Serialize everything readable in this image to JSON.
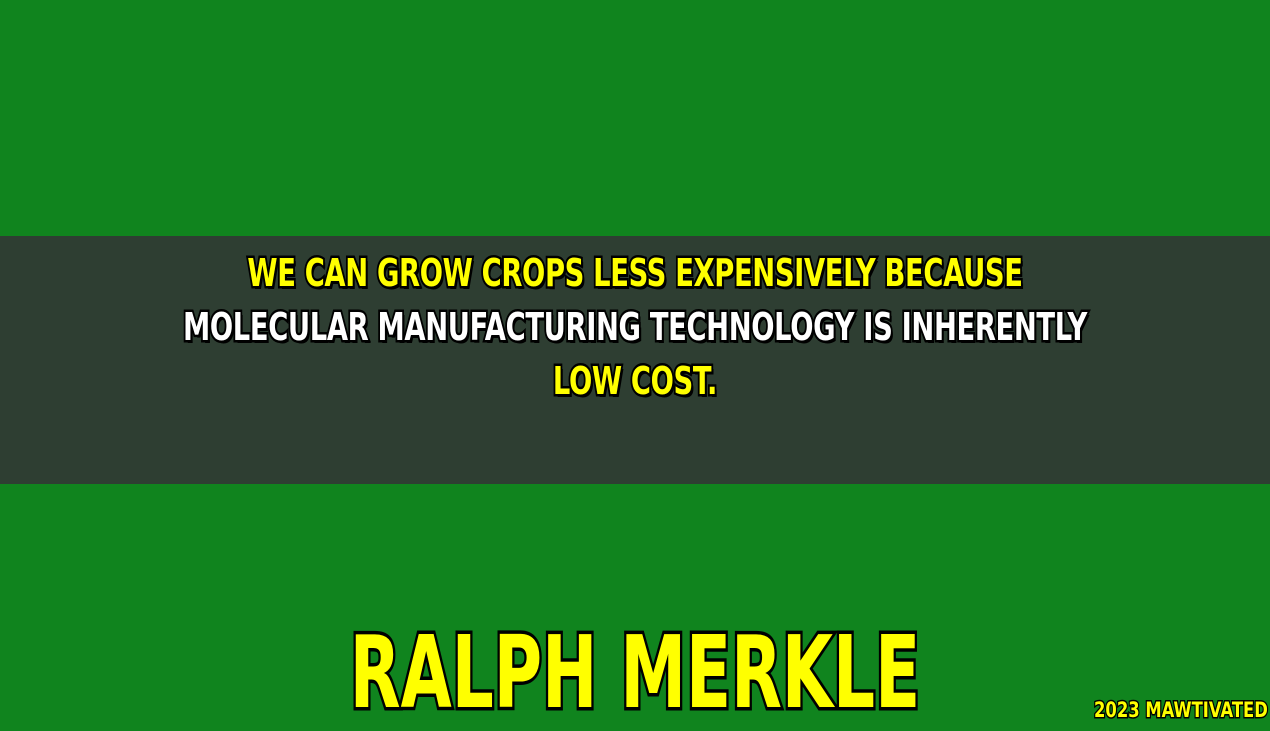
{
  "quote": {
    "line1": "WE CAN GROW CROPS LESS EXPENSIVELY BECAUSE",
    "line2": "MOLECULAR MANUFACTURING TECHNOLOGY IS INHERENTLY",
    "line3": "LOW COST."
  },
  "author": "RALPH MERKLE",
  "watermark": "2023 MAWTIVATED",
  "colors": {
    "background": "#10841e",
    "band": "#2e3e32",
    "accent_text": "#ffff00",
    "secondary_text": "#ffffff",
    "outline": "#000000"
  }
}
